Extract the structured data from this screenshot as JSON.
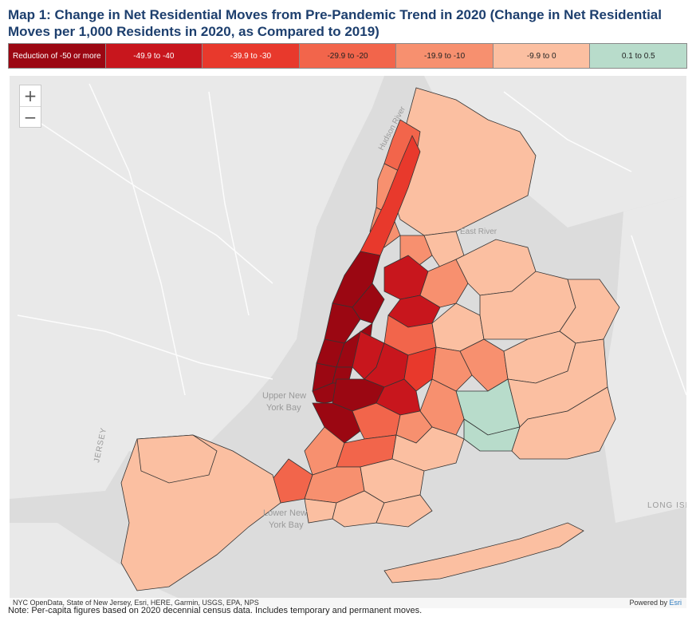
{
  "title": "Map 1: Change in Net Residential Moves from Pre-Pandemic Trend in 2020 (Change in Net Residential Moves per 1,000 Residents in 2020, as Compared to 2019)",
  "legend": [
    {
      "label": "Reduction of -50 or more",
      "color": "#9b0712",
      "text_color": "#ffffff"
    },
    {
      "label": "-49.9 to -40",
      "color": "#c8161d",
      "text_color": "#ffffff"
    },
    {
      "label": "-39.9 to -30",
      "color": "#e8392c",
      "text_color": "#ffffff"
    },
    {
      "label": "-29.9 to -20",
      "color": "#f2654b",
      "text_color": "#222222"
    },
    {
      "label": "-19.9 to -10",
      "color": "#f7906f",
      "text_color": "#222222"
    },
    {
      "label": "-9.9 to 0",
      "color": "#fbbfa1",
      "text_color": "#222222"
    },
    {
      "label": "0.1 to 0.5",
      "color": "#b8dccb",
      "text_color": "#222222"
    }
  ],
  "map": {
    "zoom_in": "+",
    "zoom_out": "−",
    "water_labels": {
      "hudson": "Hudson River",
      "east": "East River",
      "upper_bay_1": "Upper New",
      "upper_bay_2": "York Bay",
      "lower_bay_1": "Lower New",
      "lower_bay_2": "York Bay",
      "long_island": "LONG ISL",
      "jersey": "JERSEY"
    },
    "attribution": "NYC OpenData, State of New Jersey, Esri, HERE, Garmin, USGS, EPA, NPS",
    "powered_by": "Powered by",
    "esri": "Esri"
  },
  "note": "Note: Per-capita figures based on 2020 decennial census data. Includes temporary and permanent moves."
}
